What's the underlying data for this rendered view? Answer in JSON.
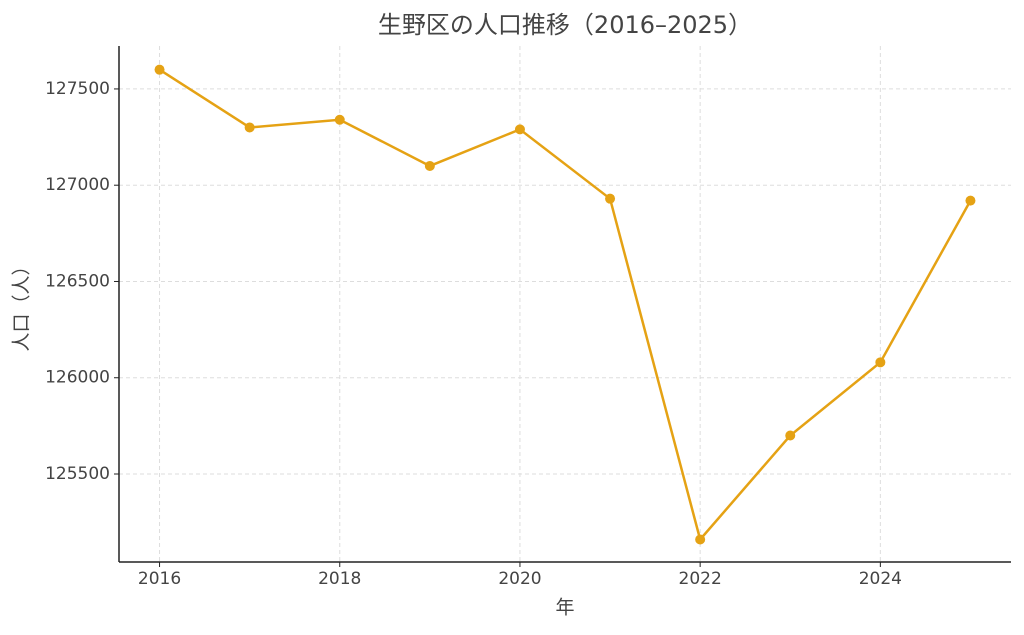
{
  "chart_data": {
    "type": "line",
    "title": "生野区の人口推移（2016–2025）",
    "x_label": "年",
    "y_label": "人口（人）",
    "x": [
      2016,
      2017,
      2018,
      2019,
      2020,
      2021,
      2022,
      2023,
      2024,
      2025
    ],
    "series": [
      {
        "name": "生野区",
        "color": "#e5a214",
        "values": [
          127600,
          127300,
          127340,
          127100,
          127290,
          126930,
          125160,
          125700,
          126080,
          126920
        ]
      }
    ],
    "xlim": [
      2015.55,
      2025.45
    ],
    "xticks": [
      2016,
      2018,
      2020,
      2022,
      2024
    ],
    "ylim": [
      125043,
      127723
    ],
    "yticks": [
      125500,
      126000,
      126500,
      127000,
      127500
    ],
    "grid": true
  }
}
